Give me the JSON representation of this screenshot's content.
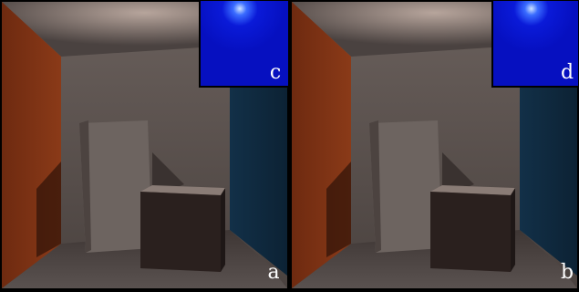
{
  "panels": [
    {
      "label": "a",
      "inset_label": "c"
    },
    {
      "label": "b",
      "inset_label": "d"
    }
  ]
}
